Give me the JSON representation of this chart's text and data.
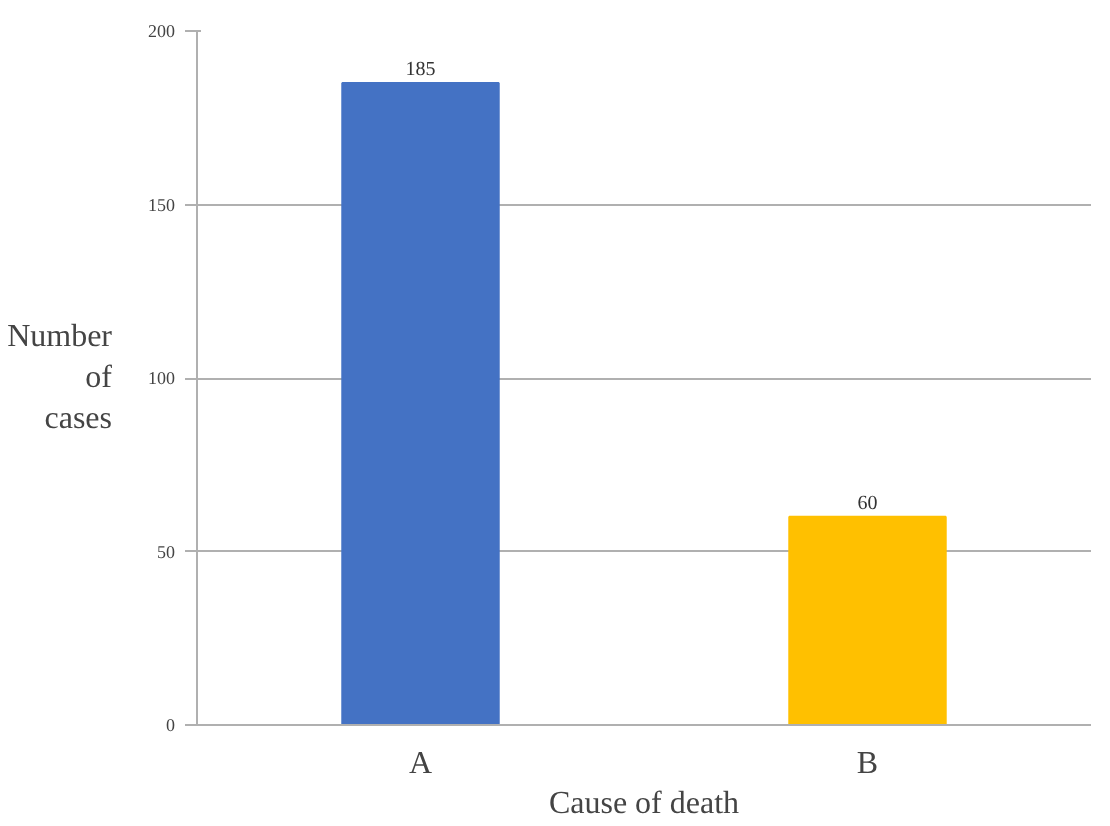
{
  "chart_data": {
    "type": "bar",
    "xlabel": "Cause of death",
    "ylabel": "Number of cases",
    "categories": [
      "A",
      "B"
    ],
    "series": [
      {
        "values": [
          185,
          60
        ],
        "colors": [
          "#4472c4",
          "#ffc000"
        ]
      }
    ],
    "ylim": [
      0,
      200
    ],
    "yticks": [
      0,
      50,
      100,
      150,
      200
    ],
    "grid": "y",
    "data_labels": true
  }
}
